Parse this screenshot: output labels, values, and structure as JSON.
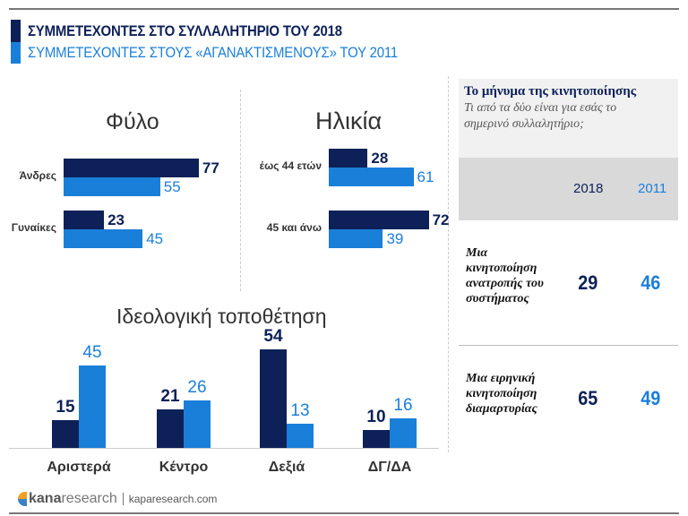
{
  "header": {
    "line1": "ΣΥΜΜΕΤΕΧΟΝΤΕΣ ΣΤΟ ΣΥΛΛΑΛΗΤΗΡΙΟ ΤΟΥ 2018",
    "line2": "ΣΥΜΜΕΤΕΧΟΝΤΕΣ ΣΤΟΥΣ «ΑΓΑΝΑΚΤΙΣΜΕΝΟΥΣ» ΤΟΥ 2011"
  },
  "colors": {
    "y2018": "#0d2158",
    "y2011": "#1a7fd9"
  },
  "gender": {
    "title": "Φύλο",
    "rows": [
      {
        "label": "Άνδρες",
        "v2018": 77,
        "v2011": 55
      },
      {
        "label": "Γυναίκες",
        "v2018": 23,
        "v2011": 45
      }
    ]
  },
  "age": {
    "title": "Ηλικία",
    "rows": [
      {
        "label": "έως 44 ετών",
        "v2018": 28,
        "v2011": 61
      },
      {
        "label": "45 και άνω",
        "v2018": 72,
        "v2011": 39
      }
    ]
  },
  "ideology": {
    "title": "Ιδεολογική τοποθέτηση",
    "groups": [
      {
        "label": "Αριστερά",
        "v2018": 15,
        "v2011": 45
      },
      {
        "label": "Κέντρο",
        "v2018": 21,
        "v2011": 26
      },
      {
        "label": "Δεξιά",
        "v2018": 54,
        "v2011": 13
      },
      {
        "label": "ΔΓ/ΔΑ",
        "v2018": 10,
        "v2011": 16
      }
    ]
  },
  "panel": {
    "title": "Το μήνυμα της κινητοποίησης",
    "question": "Τι από τα δύο είναι για εσάς το σημερινό συλλαλητήριο;",
    "col2018": "2018",
    "col2011": "2011",
    "rows": [
      {
        "label": "Μια κινητοποίηση ανατροπής του συστήματος",
        "v2018": "29",
        "v2011": "46"
      },
      {
        "label": "Μια ειρηνική κινητοποίηση διαμαρτυρίας",
        "v2018": "65",
        "v2011": "49"
      }
    ]
  },
  "footer": {
    "brand_a": "kana",
    "brand_b": "research",
    "url": "kaparesearch.com"
  }
}
